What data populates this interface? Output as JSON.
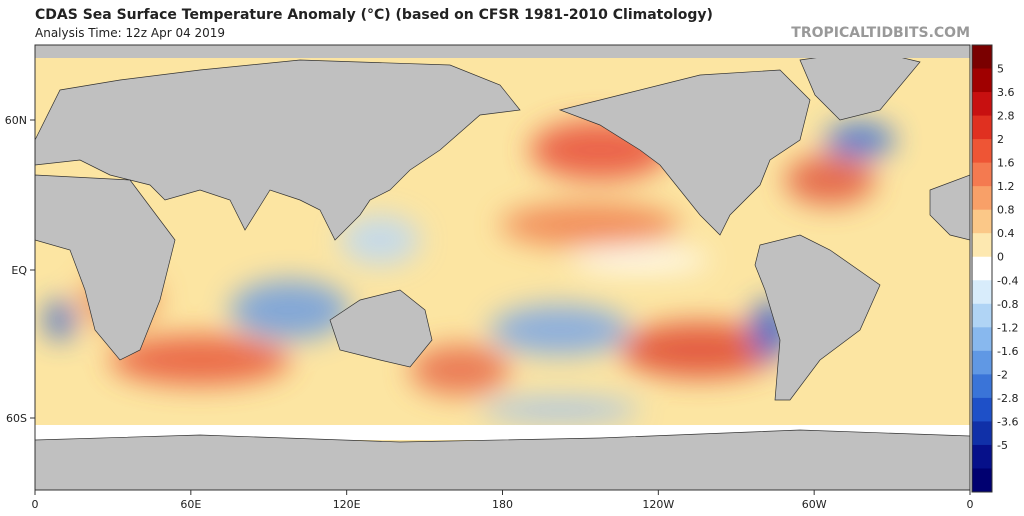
{
  "header": {
    "title": "CDAS Sea Surface Temperature Anomaly (°C) (based on CFSR 1981-2010 Climatology)",
    "subtitle": "Analysis Time: 12z Apr 04 2019",
    "credit": "TROPICALTIDBITS.COM"
  },
  "map": {
    "lat_labels": [
      "60N",
      "EQ",
      "60S"
    ],
    "lon_labels": [
      "0",
      "60E",
      "120E",
      "180",
      "120W",
      "60W",
      "0"
    ]
  },
  "colorbar": {
    "ticks": [
      5,
      3.6,
      2.8,
      2,
      1.6,
      1.2,
      0.8,
      0.4,
      0,
      -0.4,
      -0.8,
      -1.2,
      -1.6,
      -2,
      -2.8,
      -3.6,
      -5
    ]
  }
}
